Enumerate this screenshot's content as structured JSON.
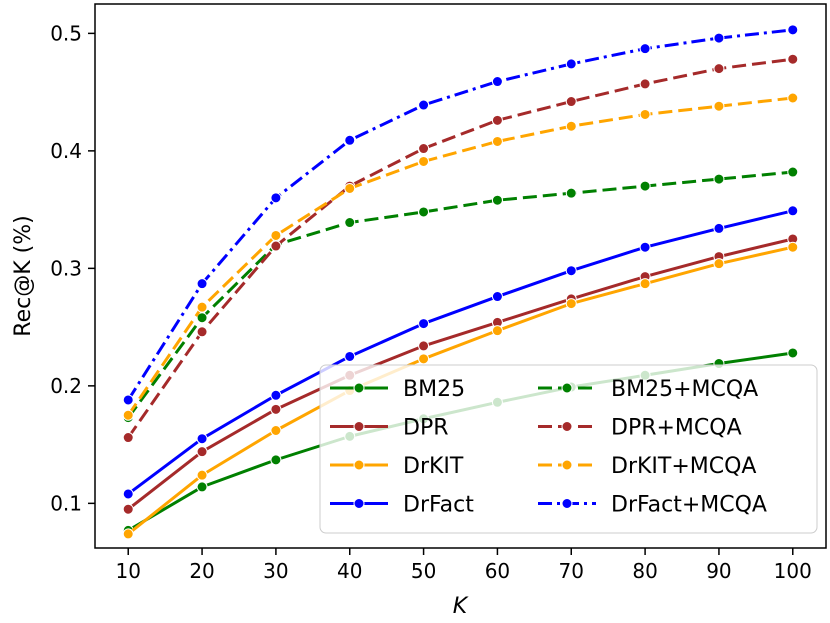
{
  "chart_data": {
    "type": "line",
    "title": "",
    "xlabel": "K",
    "ylabel": "Rec@K (%)",
    "x": [
      10,
      20,
      30,
      40,
      50,
      60,
      70,
      80,
      90,
      100
    ],
    "xlim": [
      5.5,
      104.5
    ],
    "ylim": [
      0.062,
      0.525
    ],
    "xticks": [
      "10",
      "20",
      "30",
      "40",
      "50",
      "60",
      "70",
      "80",
      "90",
      "100"
    ],
    "yticks": [
      "0.1",
      "0.2",
      "0.3",
      "0.4",
      "0.5"
    ],
    "ytick_values": [
      0.1,
      0.2,
      0.3,
      0.4,
      0.5
    ],
    "grid": false,
    "legend_position": "bottom-right",
    "series": [
      {
        "name": "BM25",
        "color": "#008000",
        "style": "solid",
        "values": [
          0.077,
          0.114,
          0.137,
          0.157,
          0.172,
          0.186,
          0.199,
          0.209,
          0.219,
          0.228
        ]
      },
      {
        "name": "DPR",
        "color": "#a52a2a",
        "style": "solid",
        "values": [
          0.095,
          0.144,
          0.18,
          0.209,
          0.234,
          0.254,
          0.274,
          0.293,
          0.31,
          0.325
        ]
      },
      {
        "name": "DrKIT",
        "color": "#ffa500",
        "style": "solid",
        "values": [
          0.074,
          0.124,
          0.162,
          0.196,
          0.223,
          0.247,
          0.27,
          0.287,
          0.304,
          0.318
        ]
      },
      {
        "name": "DrFact",
        "color": "#0000ff",
        "style": "solid",
        "values": [
          0.108,
          0.155,
          0.192,
          0.225,
          0.253,
          0.276,
          0.298,
          0.318,
          0.334,
          0.349
        ]
      },
      {
        "name": "BM25+MCQA",
        "color": "#008000",
        "style": "dashed",
        "values": [
          0.173,
          0.258,
          0.32,
          0.339,
          0.348,
          0.358,
          0.364,
          0.37,
          0.376,
          0.382
        ]
      },
      {
        "name": "DPR+MCQA",
        "color": "#a52a2a",
        "style": "dashed",
        "values": [
          0.156,
          0.246,
          0.319,
          0.37,
          0.402,
          0.426,
          0.442,
          0.457,
          0.47,
          0.478
        ]
      },
      {
        "name": "DrKIT+MCQA",
        "color": "#ffa500",
        "style": "dashed",
        "values": [
          0.175,
          0.267,
          0.328,
          0.368,
          0.391,
          0.408,
          0.421,
          0.431,
          0.438,
          0.445
        ]
      },
      {
        "name": "DrFact+MCQA",
        "color": "#0000ff",
        "style": "dashdot",
        "values": [
          0.188,
          0.287,
          0.36,
          0.409,
          0.439,
          0.459,
          0.474,
          0.487,
          0.496,
          0.503
        ]
      }
    ]
  }
}
